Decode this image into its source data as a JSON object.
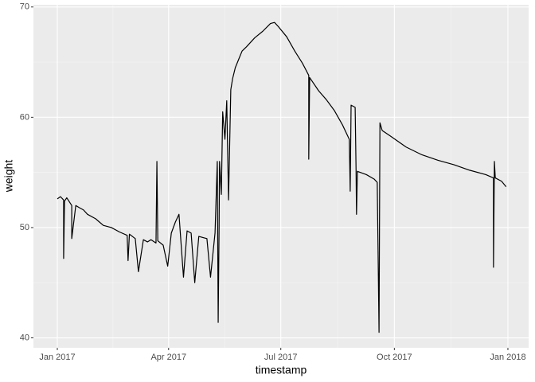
{
  "chart_data": {
    "type": "line",
    "x_label": "timestamp",
    "y_label": "weight",
    "xlim": [
      2016.947,
      2018.046
    ],
    "ylim": [
      39.1,
      70.2
    ],
    "xticks": [
      {
        "value": 2017.0,
        "label": "Jan 2017"
      },
      {
        "value": 2017.247,
        "label": "Apr 2017"
      },
      {
        "value": 2017.496,
        "label": "Jul 2017"
      },
      {
        "value": 2017.748,
        "label": "Oct 2017"
      },
      {
        "value": 2018.0,
        "label": "Jan 2018"
      }
    ],
    "yticks": [
      40,
      50,
      60,
      70
    ],
    "grid": true,
    "series": [
      {
        "color": "#000000",
        "x": [
          2017.0,
          2017.007,
          2017.014,
          2017.014,
          2017.016,
          2017.021,
          2017.032,
          2017.032,
          2017.041,
          2017.049,
          2017.058,
          2017.067,
          2017.085,
          2017.102,
          2017.12,
          2017.138,
          2017.155,
          2017.157,
          2017.16,
          2017.173,
          2017.18,
          2017.191,
          2017.2,
          2017.208,
          2017.219,
          2017.221,
          2017.223,
          2017.235,
          2017.245,
          2017.253,
          2017.262,
          2017.27,
          2017.28,
          2017.288,
          2017.297,
          2017.305,
          2017.314,
          2017.332,
          2017.34,
          2017.35,
          2017.355,
          2017.357,
          2017.359,
          2017.36,
          2017.364,
          2017.367,
          2017.372,
          2017.376,
          2017.38,
          2017.385,
          2017.389,
          2017.395,
          2017.403,
          2017.41,
          2017.42,
          2017.438,
          2017.456,
          2017.473,
          2017.482,
          2017.491,
          2017.509,
          2017.527,
          2017.544,
          2017.558,
          2017.558,
          2017.56,
          2017.58,
          2017.597,
          2017.615,
          2017.633,
          2017.648,
          2017.65,
          2017.652,
          2017.661,
          2017.663,
          2017.664,
          2017.666,
          2017.686,
          2017.703,
          2017.71,
          2017.714,
          2017.716,
          2017.721,
          2017.739,
          2017.774,
          2017.809,
          2017.845,
          2017.88,
          2017.915,
          2017.951,
          2017.968,
          2017.968,
          2017.97,
          2017.972,
          2017.986,
          2017.996
        ],
        "values": [
          52.6,
          52.8,
          52.5,
          47.2,
          52.4,
          52.7,
          52.0,
          49.0,
          52.0,
          51.8,
          51.6,
          51.2,
          50.8,
          50.2,
          50.0,
          49.6,
          49.3,
          47.0,
          49.4,
          49.0,
          46.0,
          48.9,
          48.7,
          48.9,
          48.6,
          56.0,
          48.8,
          48.4,
          46.5,
          49.5,
          50.5,
          51.2,
          45.5,
          49.7,
          49.5,
          45.0,
          49.2,
          49.0,
          45.5,
          49.5,
          56.0,
          41.4,
          50.0,
          56.0,
          53.0,
          60.5,
          58.0,
          61.5,
          52.5,
          62.5,
          63.5,
          64.5,
          65.3,
          66.0,
          66.4,
          67.2,
          67.8,
          68.5,
          68.6,
          68.2,
          67.3,
          66.0,
          64.9,
          63.8,
          56.2,
          63.6,
          62.4,
          61.6,
          60.6,
          59.3,
          58.0,
          53.3,
          61.1,
          60.9,
          55.3,
          51.2,
          55.1,
          54.8,
          54.4,
          54.1,
          40.5,
          59.5,
          58.8,
          58.3,
          57.3,
          56.6,
          56.1,
          55.7,
          55.2,
          54.8,
          54.5,
          46.4,
          56.0,
          54.5,
          54.2,
          53.7
        ]
      }
    ]
  }
}
